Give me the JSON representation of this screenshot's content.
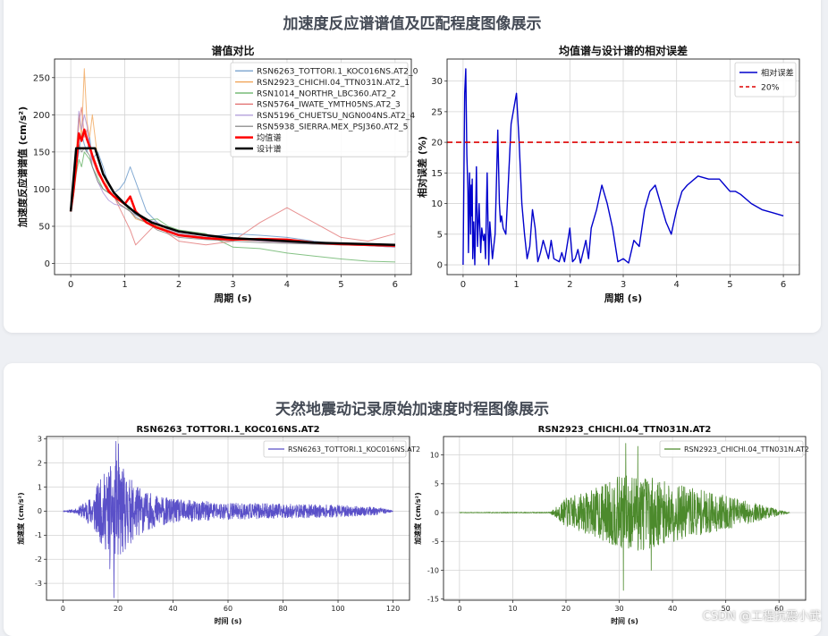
{
  "sections": [
    {
      "title": "加速度反应谱谱值及匹配程度图像展示"
    },
    {
      "title": "天然地震动记录原始加速度时程图像展示"
    }
  ],
  "watermark": "CSDN @工程抗震小武",
  "chart_data": [
    {
      "id": "spectra",
      "type": "line",
      "title": "谱值对比",
      "xlabel": "周期 (s)",
      "ylabel": "加速度反应谱谱值 (cm/s²)",
      "xlim": [
        -0.3,
        6.3
      ],
      "ylim": [
        -15,
        275
      ],
      "xticks": [
        0,
        1,
        2,
        3,
        4,
        5,
        6
      ],
      "yticks": [
        0,
        50,
        100,
        150,
        200,
        250
      ],
      "grid": true,
      "legend": "top-right",
      "series": [
        {
          "name": "RSN6263_TOTTORI.1_KOC016NS.AT2_0",
          "color": "#5b8fc4",
          "width": 1,
          "x": [
            0,
            0.05,
            0.1,
            0.15,
            0.2,
            0.25,
            0.3,
            0.35,
            0.4,
            0.5,
            0.6,
            0.7,
            0.8,
            0.9,
            1.0,
            1.1,
            1.2,
            1.4,
            1.6,
            1.8,
            2.0,
            2.5,
            3.0,
            3.5,
            4.0,
            4.5,
            5.0,
            5.5,
            6.0
          ],
          "values": [
            70,
            100,
            130,
            150,
            175,
            160,
            150,
            170,
            140,
            150,
            130,
            105,
            95,
            100,
            110,
            130,
            110,
            70,
            55,
            45,
            40,
            35,
            40,
            38,
            35,
            30,
            26,
            24,
            22
          ]
        },
        {
          "name": "RSN2923_CHICHI.04_TTN031N.AT2_1",
          "color": "#f0a050",
          "width": 1,
          "x": [
            0,
            0.05,
            0.1,
            0.15,
            0.2,
            0.25,
            0.3,
            0.35,
            0.4,
            0.5,
            0.6,
            0.7,
            0.8,
            0.9,
            1.0,
            1.1,
            1.2,
            1.4,
            1.6,
            1.8,
            2.0,
            2.5,
            3.0,
            3.5,
            4.0,
            4.5,
            5.0,
            5.5,
            6.0
          ],
          "values": [
            70,
            110,
            150,
            200,
            170,
            262,
            190,
            170,
            200,
            140,
            120,
            100,
            90,
            80,
            75,
            70,
            60,
            55,
            50,
            45,
            40,
            35,
            32,
            30,
            28,
            26,
            25,
            24,
            22
          ]
        },
        {
          "name": "RSN1014_NORTHR_LBC360.AT2_2",
          "color": "#5cae5c",
          "width": 1,
          "x": [
            0,
            0.05,
            0.1,
            0.15,
            0.2,
            0.25,
            0.3,
            0.35,
            0.4,
            0.5,
            0.6,
            0.7,
            0.8,
            0.9,
            1.0,
            1.1,
            1.2,
            1.4,
            1.6,
            1.8,
            2.0,
            2.5,
            3.0,
            3.5,
            4.0,
            4.5,
            5.0,
            5.5,
            6.0
          ],
          "values": [
            70,
            90,
            120,
            140,
            130,
            150,
            145,
            140,
            130,
            115,
            100,
            95,
            90,
            85,
            80,
            70,
            65,
            58,
            60,
            50,
            45,
            40,
            22,
            20,
            14,
            10,
            6,
            3,
            2
          ]
        },
        {
          "name": "RSN5764_IWATE_YMTH05NS.AT2_3",
          "color": "#e06c6c",
          "width": 1,
          "x": [
            0,
            0.05,
            0.1,
            0.15,
            0.2,
            0.25,
            0.3,
            0.35,
            0.4,
            0.5,
            0.6,
            0.7,
            0.8,
            0.9,
            1.0,
            1.1,
            1.2,
            1.4,
            1.6,
            1.8,
            2.0,
            2.5,
            3.0,
            3.5,
            4.0,
            4.5,
            5.0,
            5.5,
            6.0
          ],
          "values": [
            70,
            100,
            140,
            190,
            210,
            170,
            180,
            160,
            140,
            120,
            110,
            100,
            90,
            75,
            60,
            45,
            25,
            40,
            55,
            40,
            30,
            25,
            30,
            55,
            75,
            55,
            35,
            30,
            40
          ]
        },
        {
          "name": "RSN5196_CHUETSU_NGN004NS.AT2_4",
          "color": "#a58cd4",
          "width": 1,
          "x": [
            0,
            0.05,
            0.1,
            0.15,
            0.2,
            0.25,
            0.3,
            0.35,
            0.4,
            0.5,
            0.6,
            0.7,
            0.8,
            0.9,
            1.0,
            1.1,
            1.2,
            1.4,
            1.6,
            1.8,
            2.0,
            2.5,
            3.0,
            3.5,
            4.0,
            4.5,
            5.0,
            5.5,
            6.0
          ],
          "values": [
            70,
            95,
            130,
            205,
            180,
            200,
            185,
            160,
            130,
            110,
            95,
            85,
            80,
            78,
            75,
            70,
            65,
            60,
            55,
            45,
            40,
            35,
            33,
            30,
            28,
            26,
            25,
            24,
            22
          ]
        },
        {
          "name": "RSN5938_SIERRA.MEX_PSJ360.AT2_5",
          "color": "#7a7a7a",
          "width": 1,
          "x": [
            0,
            0.05,
            0.1,
            0.15,
            0.2,
            0.25,
            0.3,
            0.35,
            0.4,
            0.5,
            0.6,
            0.7,
            0.8,
            0.9,
            1.0,
            1.1,
            1.2,
            1.4,
            1.6,
            1.8,
            2.0,
            2.5,
            3.0,
            3.5,
            4.0,
            4.5,
            5.0,
            5.5,
            6.0
          ],
          "values": [
            70,
            95,
            125,
            160,
            150,
            155,
            150,
            145,
            130,
            110,
            100,
            95,
            90,
            80,
            75,
            70,
            62,
            55,
            45,
            40,
            35,
            32,
            30,
            28,
            27,
            26,
            25,
            24,
            23
          ]
        },
        {
          "name": "均值谱",
          "color": "#ff0000",
          "width": 2.5,
          "x": [
            0,
            0.05,
            0.1,
            0.15,
            0.2,
            0.25,
            0.3,
            0.35,
            0.4,
            0.5,
            0.6,
            0.7,
            0.8,
            0.9,
            1.0,
            1.1,
            1.2,
            1.4,
            1.6,
            1.8,
            2.0,
            2.5,
            3.0,
            3.5,
            4.0,
            4.5,
            5.0,
            5.5,
            6.0
          ],
          "values": [
            70,
            98,
            132,
            175,
            165,
            180,
            167,
            157,
            145,
            125,
            110,
            97,
            90,
            85,
            80,
            90,
            70,
            55,
            48,
            43,
            38,
            34,
            32,
            33,
            32,
            28,
            26,
            25,
            24
          ]
        },
        {
          "name": "设计谱",
          "color": "#000000",
          "width": 2.5,
          "x": [
            0,
            0.1,
            0.45,
            0.6,
            0.8,
            1.0,
            1.2,
            1.5,
            2.0,
            2.5,
            3.0,
            3.5,
            4.0,
            4.5,
            5.0,
            5.5,
            6.0
          ],
          "values": [
            70,
            155,
            155,
            120,
            95,
            80,
            68,
            55,
            43,
            38,
            34,
            32,
            30,
            28,
            27,
            26,
            25
          ]
        }
      ]
    },
    {
      "id": "error",
      "type": "line",
      "title": "均值谱与设计谱的相对误差",
      "xlabel": "周期 (s)",
      "ylabel": "相对误差 (%)",
      "xlim": [
        -0.3,
        6.3
      ],
      "ylim": [
        -1.6,
        33.6
      ],
      "xticks": [
        0,
        1,
        2,
        3,
        4,
        5,
        6
      ],
      "yticks": [
        0,
        5,
        10,
        15,
        20,
        25,
        30
      ],
      "grid": true,
      "legend": "top-right",
      "series": [
        {
          "name": "相对误差",
          "color": "#0000cc",
          "width": 1.4,
          "x": [
            0,
            0.03,
            0.05,
            0.07,
            0.09,
            0.1,
            0.12,
            0.14,
            0.15,
            0.16,
            0.17,
            0.18,
            0.2,
            0.22,
            0.25,
            0.27,
            0.3,
            0.33,
            0.35,
            0.38,
            0.4,
            0.42,
            0.45,
            0.48,
            0.5,
            0.55,
            0.6,
            0.65,
            0.68,
            0.7,
            0.72,
            0.75,
            0.8,
            0.85,
            0.9,
            1.0,
            1.05,
            1.1,
            1.15,
            1.2,
            1.25,
            1.3,
            1.35,
            1.4,
            1.45,
            1.5,
            1.6,
            1.65,
            1.7,
            1.8,
            1.85,
            1.9,
            2.0,
            2.05,
            2.1,
            2.15,
            2.2,
            2.3,
            2.35,
            2.4,
            2.5,
            2.6,
            2.7,
            2.8,
            2.9,
            3.0,
            3.1,
            3.2,
            3.3,
            3.4,
            3.5,
            3.6,
            3.7,
            3.8,
            3.9,
            4.0,
            4.1,
            4.2,
            4.4,
            4.6,
            4.8,
            4.9,
            5.0,
            5.1,
            5.2,
            5.4,
            5.6,
            5.8,
            6.0
          ],
          "values": [
            0,
            28,
            32,
            18,
            12,
            2,
            15,
            5,
            13,
            8,
            14,
            1,
            7,
            0,
            16,
            3,
            10,
            2,
            6,
            4,
            5,
            1,
            15,
            0,
            7,
            1,
            5,
            22,
            10,
            7,
            8,
            6,
            5,
            14,
            23,
            28,
            20,
            10,
            5,
            1,
            3,
            9,
            6,
            0.5,
            2,
            4,
            1,
            4,
            1,
            0.5,
            2,
            0.5,
            6,
            0.5,
            1,
            2.5,
            0.3,
            4,
            1,
            6,
            9,
            13,
            10,
            6,
            0.5,
            1,
            0.3,
            4,
            3,
            9,
            12,
            13,
            10,
            7,
            5,
            9,
            12,
            13,
            14.5,
            14,
            14,
            13,
            12,
            12,
            11.5,
            10,
            9,
            8.5,
            8
          ]
        },
        {
          "name": "20%",
          "color": "#dd0000",
          "width": 1.6,
          "dash": "6,4",
          "x": [
            -0.3,
            6.3
          ],
          "values": [
            20,
            20
          ]
        }
      ]
    },
    {
      "id": "tottori",
      "type": "line",
      "title": "RSN6263_TOTTORI.1_KOC016NS.AT2",
      "xlabel": "时间 (s)",
      "ylabel": "加速度 (cm/s²)",
      "xlim": [
        -6,
        126
      ],
      "ylim": [
        -3.7,
        3.1
      ],
      "xticks": [
        0,
        20,
        40,
        60,
        80,
        100,
        120
      ],
      "yticks": [
        -3,
        -2,
        -1,
        0,
        1,
        2,
        3
      ],
      "grid": true,
      "legend": "top-right",
      "series": [
        {
          "name": "RSN6263_TOTTORI.1_KOC016NS.AT2",
          "color": "#5a50c8",
          "width": 0.8,
          "generator": "quake",
          "duration": 120,
          "points": 1600,
          "seed": 11,
          "envelope": [
            [
              0,
              0.02
            ],
            [
              5,
              0.1
            ],
            [
              10,
              0.6
            ],
            [
              15,
              1.6
            ],
            [
              20,
              2.2
            ],
            [
              24,
              1.4
            ],
            [
              30,
              0.8
            ],
            [
              40,
              0.5
            ],
            [
              60,
              0.35
            ],
            [
              80,
              0.3
            ],
            [
              100,
              0.25
            ],
            [
              115,
              0.15
            ],
            [
              120,
              0.02
            ]
          ],
          "peaks": [
            [
              18.5,
              -3.6
            ],
            [
              19.3,
              2.9
            ],
            [
              20.2,
              2.8
            ],
            [
              17,
              -2.4
            ]
          ]
        }
      ]
    },
    {
      "id": "chichi",
      "type": "line",
      "title": "RSN2923_CHICHI.04_TTN031N.AT2",
      "xlabel": "时间 (s)",
      "ylabel": "加速度 (cm/s²)",
      "xlim": [
        -3,
        65
      ],
      "ylim": [
        -15.2,
        13.2
      ],
      "xticks": [
        0,
        10,
        20,
        30,
        40,
        50,
        60
      ],
      "yticks": [
        -15,
        -10,
        -5,
        0,
        5,
        10
      ],
      "grid": true,
      "legend": "top-right",
      "series": [
        {
          "name": "RSN2923_CHICHI.04_TTN031N.AT2",
          "color": "#4c8a2c",
          "width": 0.8,
          "generator": "quake",
          "duration": 62,
          "points": 1400,
          "seed": 7,
          "envelope": [
            [
              0,
              0.05
            ],
            [
              17,
              0.1
            ],
            [
              20,
              2.5
            ],
            [
              25,
              4.0
            ],
            [
              29,
              6.0
            ],
            [
              33,
              7.0
            ],
            [
              38,
              5.5
            ],
            [
              45,
              4.0
            ],
            [
              50,
              3.0
            ],
            [
              55,
              1.8
            ],
            [
              60,
              0.5
            ],
            [
              62,
              0.1
            ]
          ],
          "peaks": [
            [
              31.2,
              12
            ],
            [
              30.8,
              -13.5
            ],
            [
              33.5,
              11.5
            ],
            [
              36,
              -10
            ]
          ]
        }
      ]
    }
  ]
}
